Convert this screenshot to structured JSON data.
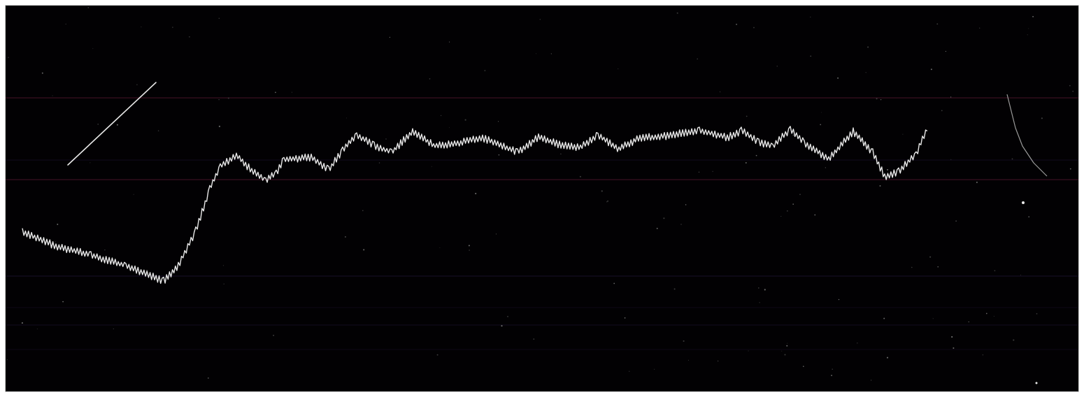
{
  "photo": {
    "subject": "oscillogram",
    "background_color": "#020103",
    "frame_color": "#cfcfcf",
    "trace_color": "#e8e8e8",
    "scan_line_color": "#3a1020",
    "faint_line_color": "#18102a"
  }
}
